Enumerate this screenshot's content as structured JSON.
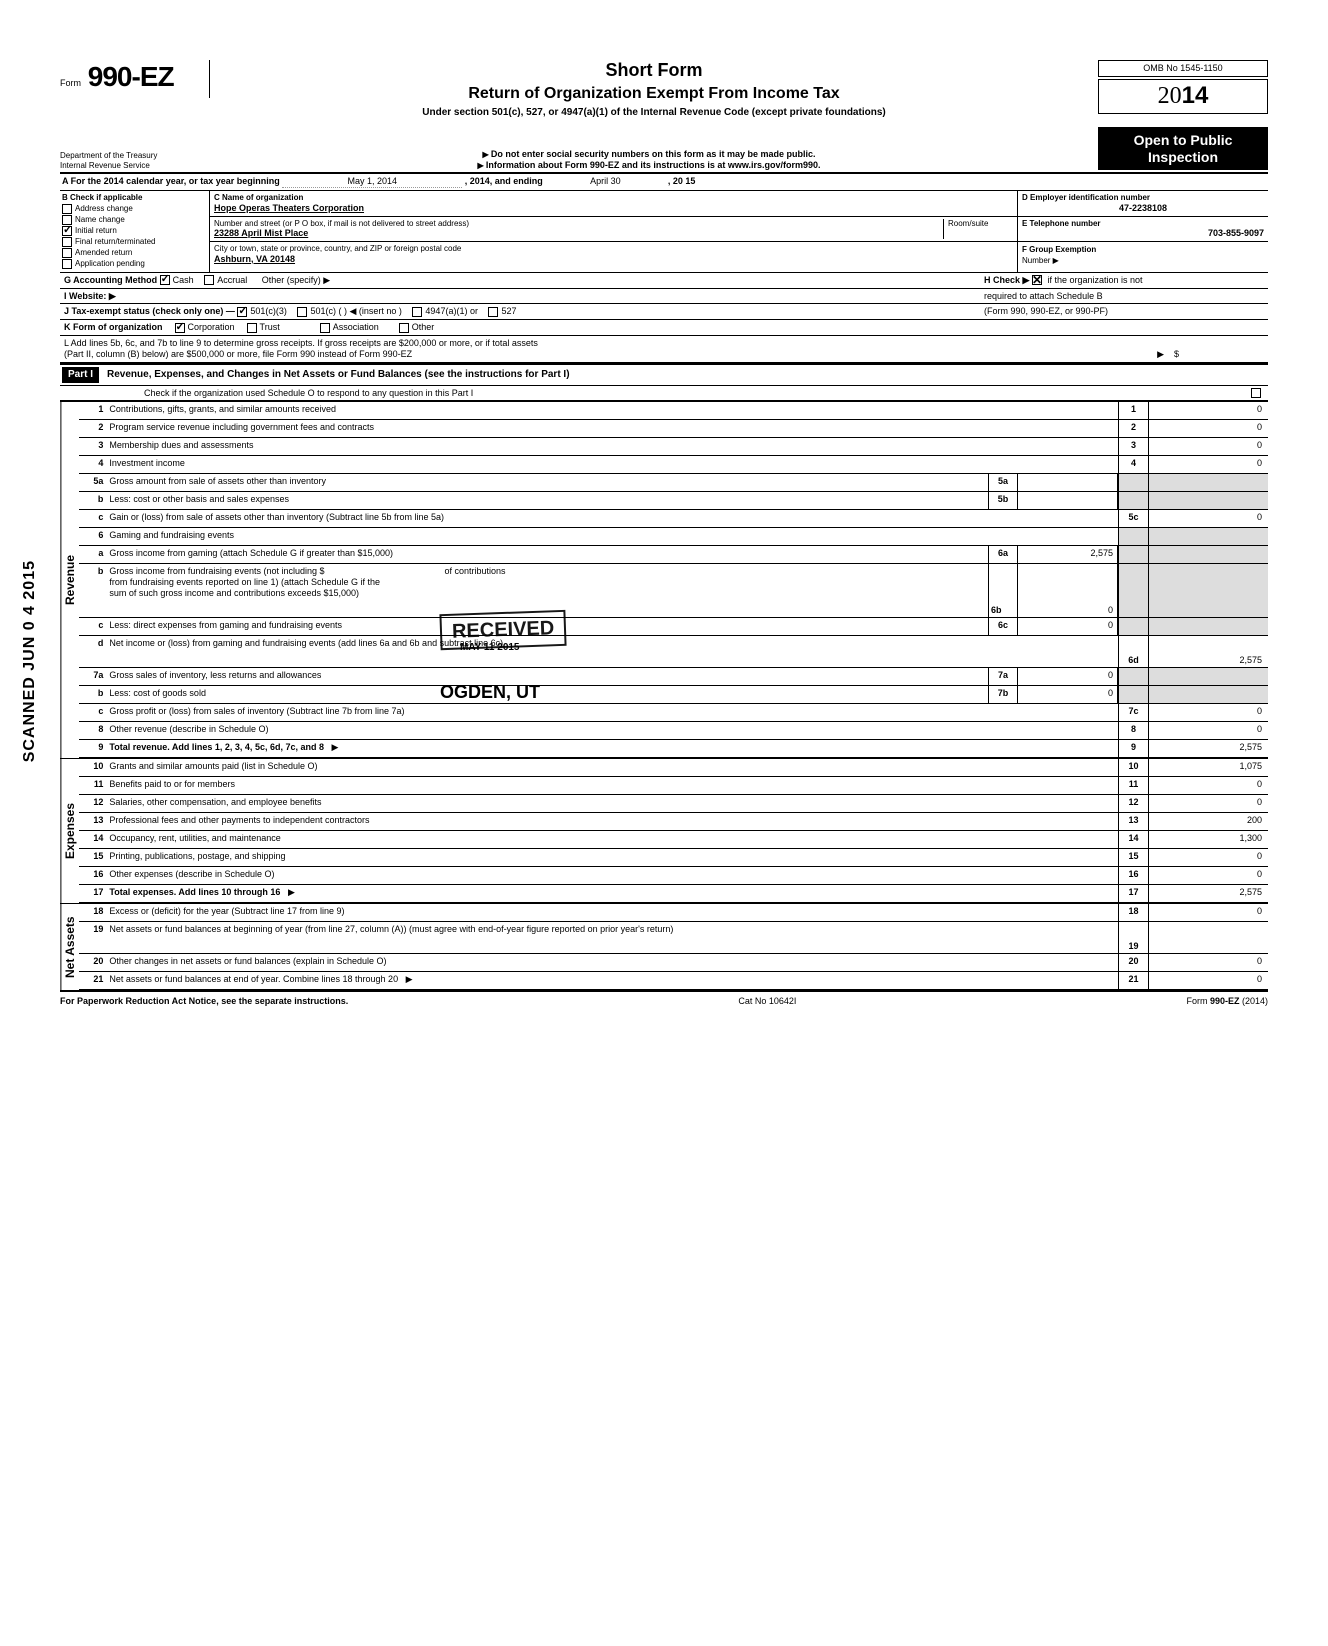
{
  "header": {
    "form_prefix": "Form",
    "form_number": "990-EZ",
    "short_form": "Short Form",
    "title": "Return of Organization Exempt From Income Tax",
    "subtitle": "Under section 501(c), 527, or 4947(a)(1) of the Internal Revenue Code (except private foundations)",
    "warn1": "Do not enter social security numbers on this form as it may be made public.",
    "warn2": "Information about Form 990-EZ and its instructions is at www.irs.gov/form990.",
    "omb": "OMB No 1545-1150",
    "year_prefix": "20",
    "year_bold": "14",
    "open_public": "Open to Public Inspection",
    "dept1": "Department of the Treasury",
    "dept2": "Internal Revenue Service"
  },
  "row_a": {
    "label": "A For the 2014 calendar year, or tax year beginning",
    "begin": "May 1, 2014",
    "mid": ", 2014, and ending",
    "end_month": "April 30",
    "end_year": ", 20   15"
  },
  "col_b": {
    "header": "B Check if applicable",
    "items": [
      "Address change",
      "Name change",
      "Initial return",
      "Final return/terminated",
      "Amended return",
      "Application pending"
    ],
    "checked_idx": 2
  },
  "col_c": {
    "name_label": "C Name of organization",
    "name": "Hope Operas Theaters Corporation",
    "addr_label": "Number and street (or P O  box, if mail is not delivered to street address)",
    "room_label": "Room/suite",
    "addr": "23288 April Mist Place",
    "city_label": "City or town, state or province, country, and ZIP or foreign postal code",
    "city": "Ashburn, VA 20148"
  },
  "col_d": {
    "ein_label": "D Employer identification number",
    "ein": "47-2238108",
    "tel_label": "E Telephone number",
    "tel": "703-855-9097",
    "grp_label": "F Group Exemption",
    "grp_num": "Number ▶"
  },
  "row_g": {
    "label": "G Accounting Method",
    "cash": "Cash",
    "accrual": "Accrual",
    "other": "Other (specify) ▶"
  },
  "row_h": {
    "text1": "H Check ▶",
    "text2": "if the organization is not",
    "text3": "required to attach Schedule B",
    "text4": "(Form 990, 990-EZ, or 990-PF)"
  },
  "row_i": {
    "label": "I  Website: ▶"
  },
  "row_j": {
    "label": "J Tax-exempt status (check only one) —",
    "opt1": "501(c)(3)",
    "opt2": "501(c) (",
    "opt2b": ") ◀ (insert no )",
    "opt3": "4947(a)(1) or",
    "opt4": "527"
  },
  "row_k": {
    "label": "K Form of organization",
    "corp": "Corporation",
    "trust": "Trust",
    "assoc": "Association",
    "other": "Other"
  },
  "row_l": {
    "text1": "L Add lines 5b, 6c, and 7b to line 9 to determine gross receipts. If gross receipts are $200,000 or more, or if total assets",
    "text2": "(Part II, column (B) below) are $500,000 or more, file Form 990 instead of Form 990-EZ",
    "arrow": "▶",
    "dollar": "$"
  },
  "part1": {
    "label": "Part I",
    "title": "Revenue, Expenses, and Changes in Net Assets or Fund Balances (see the instructions for Part I)",
    "check_line": "Check if the organization used Schedule O to respond to any question in this Part I"
  },
  "revenue_label": "Revenue",
  "expenses_label": "Expenses",
  "netassets_label": "Net Assets",
  "lines": {
    "l1": {
      "n": "1",
      "d": "Contributions, gifts, grants, and similar amounts received",
      "c": "1",
      "v": "0"
    },
    "l2": {
      "n": "2",
      "d": "Program service revenue including government fees and contracts",
      "c": "2",
      "v": "0"
    },
    "l3": {
      "n": "3",
      "d": "Membership dues and assessments",
      "c": "3",
      "v": "0"
    },
    "l4": {
      "n": "4",
      "d": "Investment income",
      "c": "4",
      "v": "0"
    },
    "l5a": {
      "n": "5a",
      "d": "Gross amount from sale of assets other than inventory",
      "m": "5a",
      "mv": ""
    },
    "l5b": {
      "n": "b",
      "d": "Less: cost or other basis and sales expenses",
      "m": "5b",
      "mv": ""
    },
    "l5c": {
      "n": "c",
      "d": "Gain or (loss) from sale of assets other than inventory (Subtract line 5b from line 5a)",
      "c": "5c",
      "v": "0"
    },
    "l6": {
      "n": "6",
      "d": "Gaming and fundraising events"
    },
    "l6a": {
      "n": "a",
      "d": "Gross income from gaming (attach Schedule G if greater than $15,000)",
      "m": "6a",
      "mv": "2,575"
    },
    "l6b": {
      "n": "b",
      "d": "Gross income from fundraising events (not including  $",
      "d2": "of contributions",
      "d3": "from fundraising events reported on line 1) (attach Schedule G if the",
      "d4": "sum of such gross income and contributions exceeds $15,000)",
      "m": "6b",
      "mv": "0"
    },
    "l6c": {
      "n": "c",
      "d": "Less: direct expenses from gaming and fundraising events",
      "m": "6c",
      "mv": "0"
    },
    "l6d": {
      "n": "d",
      "d": "Net income or (loss) from gaming and fundraising events (add lines 6a and 6b and subtract line 6c)",
      "c": "6d",
      "v": "2,575"
    },
    "l7a": {
      "n": "7a",
      "d": "Gross sales of inventory, less returns and allowances",
      "m": "7a",
      "mv": "0"
    },
    "l7b": {
      "n": "b",
      "d": "Less: cost of goods sold",
      "m": "7b",
      "mv": "0"
    },
    "l7c": {
      "n": "c",
      "d": "Gross profit or (loss) from sales of inventory (Subtract line 7b from line 7a)",
      "c": "7c",
      "v": "0"
    },
    "l8": {
      "n": "8",
      "d": "Other revenue (describe in Schedule O)",
      "c": "8",
      "v": "0"
    },
    "l9": {
      "n": "9",
      "d": "Total revenue. Add lines 1, 2, 3, 4, 5c, 6d, 7c, and 8",
      "c": "9",
      "v": "2,575",
      "bold": true,
      "arrow": true
    },
    "l10": {
      "n": "10",
      "d": "Grants and similar amounts paid (list in Schedule O)",
      "c": "10",
      "v": "1,075"
    },
    "l11": {
      "n": "11",
      "d": "Benefits paid to or for members",
      "c": "11",
      "v": "0"
    },
    "l12": {
      "n": "12",
      "d": "Salaries, other compensation, and employee benefits",
      "c": "12",
      "v": "0"
    },
    "l13": {
      "n": "13",
      "d": "Professional fees and other payments to independent contractors",
      "c": "13",
      "v": "200"
    },
    "l14": {
      "n": "14",
      "d": "Occupancy, rent, utilities, and maintenance",
      "c": "14",
      "v": "1,300"
    },
    "l15": {
      "n": "15",
      "d": "Printing, publications, postage, and shipping",
      "c": "15",
      "v": "0"
    },
    "l16": {
      "n": "16",
      "d": "Other expenses (describe in Schedule O)",
      "c": "16",
      "v": "0"
    },
    "l17": {
      "n": "17",
      "d": "Total expenses. Add lines 10 through 16",
      "c": "17",
      "v": "2,575",
      "bold": true,
      "arrow": true
    },
    "l18": {
      "n": "18",
      "d": "Excess or (deficit) for the year (Subtract line 17 from line 9)",
      "c": "18",
      "v": "0"
    },
    "l19": {
      "n": "19",
      "d": "Net assets or fund balances at beginning of year (from line 27, column (A)) (must agree with end-of-year figure reported on prior year's return)",
      "c": "19",
      "v": ""
    },
    "l20": {
      "n": "20",
      "d": "Other changes in net assets or fund balances (explain in Schedule O)",
      "c": "20",
      "v": "0"
    },
    "l21": {
      "n": "21",
      "d": "Net assets or fund balances at end of year. Combine lines 18 through 20",
      "c": "21",
      "v": "0",
      "arrow": true
    }
  },
  "footer": {
    "left": "For Paperwork Reduction Act Notice, see the separate instructions.",
    "mid": "Cat No 10642I",
    "right": "Form 990-EZ (2014)"
  },
  "stamps": {
    "received": "RECEIVED",
    "date": "MAY 11 2015",
    "ogden": "OGDEN, UT",
    "scanned": "SCANNED  JUN 0 4 2015"
  }
}
